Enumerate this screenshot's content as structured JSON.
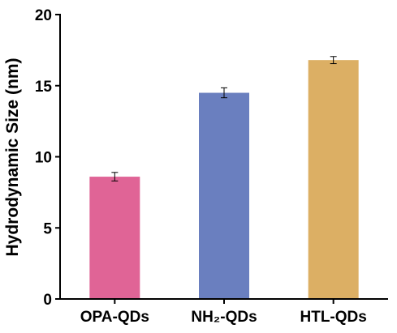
{
  "chart_data": {
    "type": "bar",
    "title": "",
    "xlabel": "",
    "ylabel": "Hydrodynamic Size (nm)",
    "ylim": [
      0,
      20
    ],
    "yticks": [
      "0",
      "5",
      "10",
      "15",
      "20"
    ],
    "categories": [
      "OPA-QDs",
      "NH₂-QDs",
      "HTL-QDs"
    ],
    "values": [
      8.6,
      14.5,
      16.8
    ],
    "errors": [
      0.3,
      0.35,
      0.25
    ],
    "colors": [
      "#e06496",
      "#6a7fbf",
      "#dcaf64"
    ],
    "grid": false,
    "legend": "none"
  }
}
